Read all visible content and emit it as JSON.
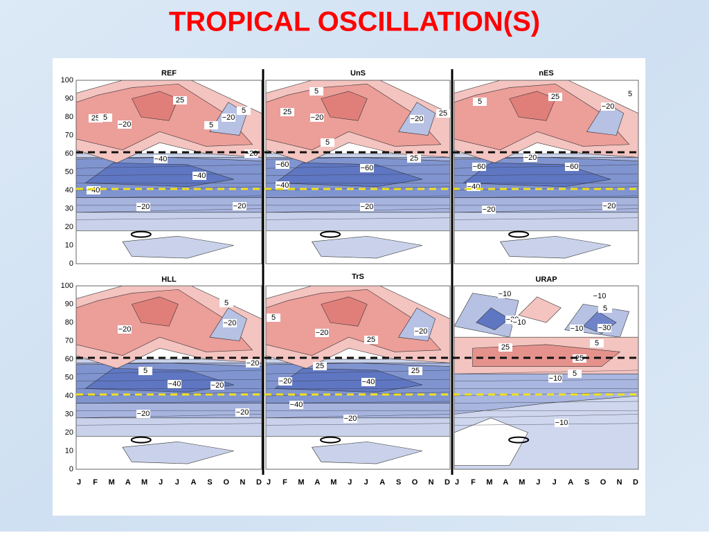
{
  "title": "TROPICAL OSCILLATION(S)",
  "y_ticks": [
    0,
    10,
    20,
    30,
    40,
    50,
    60,
    70,
    80,
    90,
    100
  ],
  "months": [
    "J",
    "F",
    "M",
    "A",
    "M",
    "J",
    "J",
    "A",
    "S",
    "O",
    "N",
    "D"
  ],
  "panels": [
    {
      "title": "REF",
      "labels": [
        "25",
        "25",
        "5",
        "−20",
        "5",
        "−20",
        "5",
        "−40",
        "−40",
        "−20",
        "−40",
        "−20",
        "−20"
      ]
    },
    {
      "title": "UnS",
      "labels": [
        "5",
        "25",
        "−20",
        "5",
        "−20",
        "25",
        "−60",
        "−60",
        "25",
        "−40",
        "−20"
      ]
    },
    {
      "title": "nES",
      "labels": [
        "25",
        "5",
        "−20",
        "5",
        "−20",
        "−60",
        "−60",
        "−40",
        "−20",
        "−20"
      ]
    },
    {
      "title": "HLL",
      "labels": [
        "5",
        "−20",
        "−20",
        "5",
        "−40",
        "−20",
        "−20",
        "−20",
        "−20"
      ]
    },
    {
      "title": "TrS",
      "labels": [
        "5",
        "−20",
        "25",
        "−20",
        "25",
        "−20",
        "−40",
        "25",
        "−40",
        "−20"
      ]
    },
    {
      "title": "URAP",
      "labels": [
        "−10",
        "−10",
        "−30",
        "−10",
        "5",
        "−10",
        "−30",
        "25",
        "5",
        "25",
        "−10",
        "5",
        "−10"
      ]
    }
  ]
}
